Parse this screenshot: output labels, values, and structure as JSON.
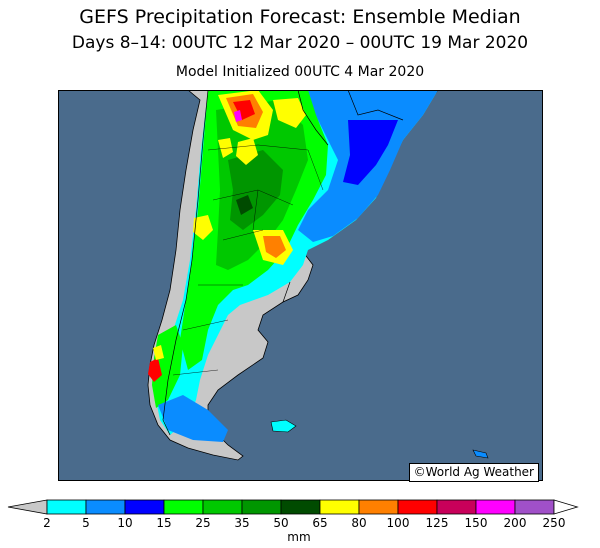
{
  "title": {
    "line1": "GEFS Precipitation Forecast: Ensemble Median",
    "line2": "Days 8–14: 00UTC 12 Mar 2020 – 00UTC 19 Mar 2020",
    "line3": "Model Initialized 00UTC 4 Mar 2020"
  },
  "credit": "©World Ag Weather",
  "legend": {
    "unit": "mm",
    "ticks": [
      "2",
      "5",
      "10",
      "15",
      "25",
      "35",
      "50",
      "65",
      "80",
      "100",
      "125",
      "150",
      "200",
      "250"
    ],
    "colors": [
      "#c8c8c8",
      "#00ffff",
      "#0a8cff",
      "#0000ff",
      "#00ff00",
      "#00c800",
      "#009600",
      "#004b00",
      "#ffff00",
      "#ff8000",
      "#ff0000",
      "#c8005a",
      "#ff00ff",
      "#a050c8",
      "#ffffff"
    ]
  },
  "map_colors": {
    "ocean": "#4a6b8c",
    "dry": "#c8c8c8"
  }
}
